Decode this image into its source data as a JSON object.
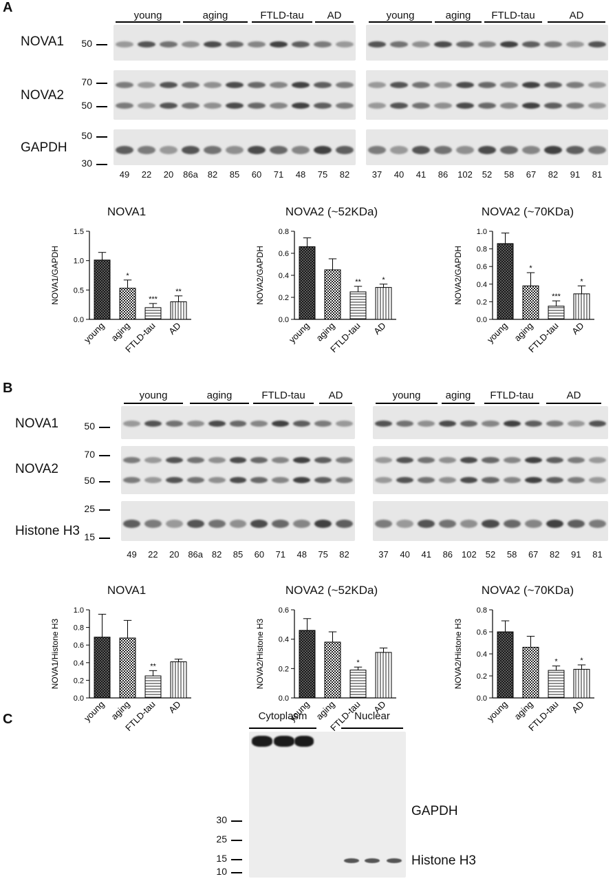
{
  "panels": {
    "A": {
      "letter": "A",
      "groups": [
        "young",
        "aging",
        "FTLD-tau",
        "AD"
      ],
      "blots": [
        {
          "name": "NOVA1",
          "mw": [
            "50"
          ]
        },
        {
          "name": "NOVA2",
          "mw": [
            "70",
            "50"
          ]
        },
        {
          "name": "GAPDH",
          "mw": [
            "50",
            "30"
          ]
        }
      ],
      "lanes_left": [
        "49",
        "22",
        "20",
        "86a",
        "82",
        "85",
        "60",
        "71",
        "48",
        "75",
        "82"
      ],
      "lanes_right": [
        "37",
        "40",
        "41",
        "86",
        "102",
        "52",
        "58",
        "67",
        "82",
        "91",
        "81"
      ]
    },
    "B": {
      "letter": "B",
      "groups": [
        "young",
        "aging",
        "FTLD-tau",
        "AD"
      ],
      "blots": [
        {
          "name": "NOVA1",
          "mw": [
            "50"
          ]
        },
        {
          "name": "NOVA2",
          "mw": [
            "70",
            "50"
          ]
        },
        {
          "name": "Histone H3",
          "mw": [
            "25",
            "15"
          ]
        }
      ],
      "lanes_left": [
        "49",
        "22",
        "20",
        "86a",
        "82",
        "85",
        "60",
        "71",
        "48",
        "75",
        "82"
      ],
      "lanes_right": [
        "37",
        "40",
        "41",
        "86",
        "102",
        "52",
        "58",
        "67",
        "82",
        "91",
        "81"
      ]
    },
    "C": {
      "letter": "C",
      "fractions": [
        "Cytoplasm",
        "Nuclear"
      ],
      "mw": [
        "30",
        "25",
        "15",
        "10"
      ],
      "proteins": [
        "GAPDH",
        "Histone H3"
      ]
    }
  },
  "chart_data": [
    {
      "type": "bar",
      "panel": "A",
      "title": "NOVA1",
      "ylabel": "NOVA1/GAPDH",
      "categories": [
        "young",
        "aging",
        "FTLD-tau",
        "AD"
      ],
      "values": [
        1.01,
        0.53,
        0.2,
        0.3
      ],
      "errors": [
        0.13,
        0.14,
        0.07,
        0.1
      ],
      "significance": [
        "",
        "*",
        "***",
        "**"
      ],
      "ylim": [
        0,
        1.5
      ],
      "yticks": [
        "0.0",
        "0.5",
        "1.0",
        "1.5"
      ]
    },
    {
      "type": "bar",
      "panel": "A",
      "title": "NOVA2 (~52KDa)",
      "ylabel": "NOVA2/GAPDH",
      "categories": [
        "young",
        "aging",
        "FTLD-tau",
        "AD"
      ],
      "values": [
        0.66,
        0.45,
        0.25,
        0.29
      ],
      "errors": [
        0.08,
        0.1,
        0.05,
        0.03
      ],
      "significance": [
        "",
        "",
        "**",
        "*"
      ],
      "ylim": [
        0,
        0.8
      ],
      "yticks": [
        "0.0",
        "0.2",
        "0.4",
        "0.6",
        "0.8"
      ]
    },
    {
      "type": "bar",
      "panel": "A",
      "title": "NOVA2 (~70KDa)",
      "ylabel": "NOVA2/GAPDH",
      "categories": [
        "young",
        "aging",
        "FTLD-tau",
        "AD"
      ],
      "values": [
        0.86,
        0.38,
        0.15,
        0.29
      ],
      "errors": [
        0.12,
        0.15,
        0.06,
        0.09
      ],
      "significance": [
        "",
        "*",
        "***",
        "*"
      ],
      "ylim": [
        0,
        1.0
      ],
      "yticks": [
        "0.0",
        "0.2",
        "0.4",
        "0.6",
        "0.8",
        "1.0"
      ]
    },
    {
      "type": "bar",
      "panel": "B",
      "title": "NOVA1",
      "ylabel": "NOVA1/Histone H3",
      "categories": [
        "young",
        "aging",
        "FTLD-tau",
        "AD"
      ],
      "values": [
        0.69,
        0.68,
        0.25,
        0.41
      ],
      "errors": [
        0.26,
        0.2,
        0.06,
        0.03
      ],
      "significance": [
        "",
        "",
        "**",
        ""
      ],
      "ylim": [
        0,
        1.0
      ],
      "yticks": [
        "0.0",
        "0.2",
        "0.4",
        "0.6",
        "0.8",
        "1.0"
      ]
    },
    {
      "type": "bar",
      "panel": "B",
      "title": "NOVA2 (~52KDa)",
      "ylabel": "NOVA2/Histone H3",
      "categories": [
        "young",
        "aging",
        "FTLD-tau",
        "AD"
      ],
      "values": [
        0.46,
        0.38,
        0.19,
        0.31
      ],
      "errors": [
        0.08,
        0.07,
        0.02,
        0.03
      ],
      "significance": [
        "",
        "",
        "*",
        ""
      ],
      "ylim": [
        0,
        0.6
      ],
      "yticks": [
        "0.0",
        "0.2",
        "0.4",
        "0.6"
      ]
    },
    {
      "type": "bar",
      "panel": "B",
      "title": "NOVA2 (~70KDa)",
      "ylabel": "NOVA2/Histone H3",
      "categories": [
        "young",
        "aging",
        "FTLD-tau",
        "AD"
      ],
      "values": [
        0.6,
        0.46,
        0.25,
        0.26
      ],
      "errors": [
        0.1,
        0.1,
        0.04,
        0.04
      ],
      "significance": [
        "",
        "",
        "*",
        "*"
      ],
      "ylim": [
        0,
        0.8
      ],
      "yticks": [
        "0.0",
        "0.2",
        "0.4",
        "0.6",
        "0.8"
      ]
    }
  ]
}
